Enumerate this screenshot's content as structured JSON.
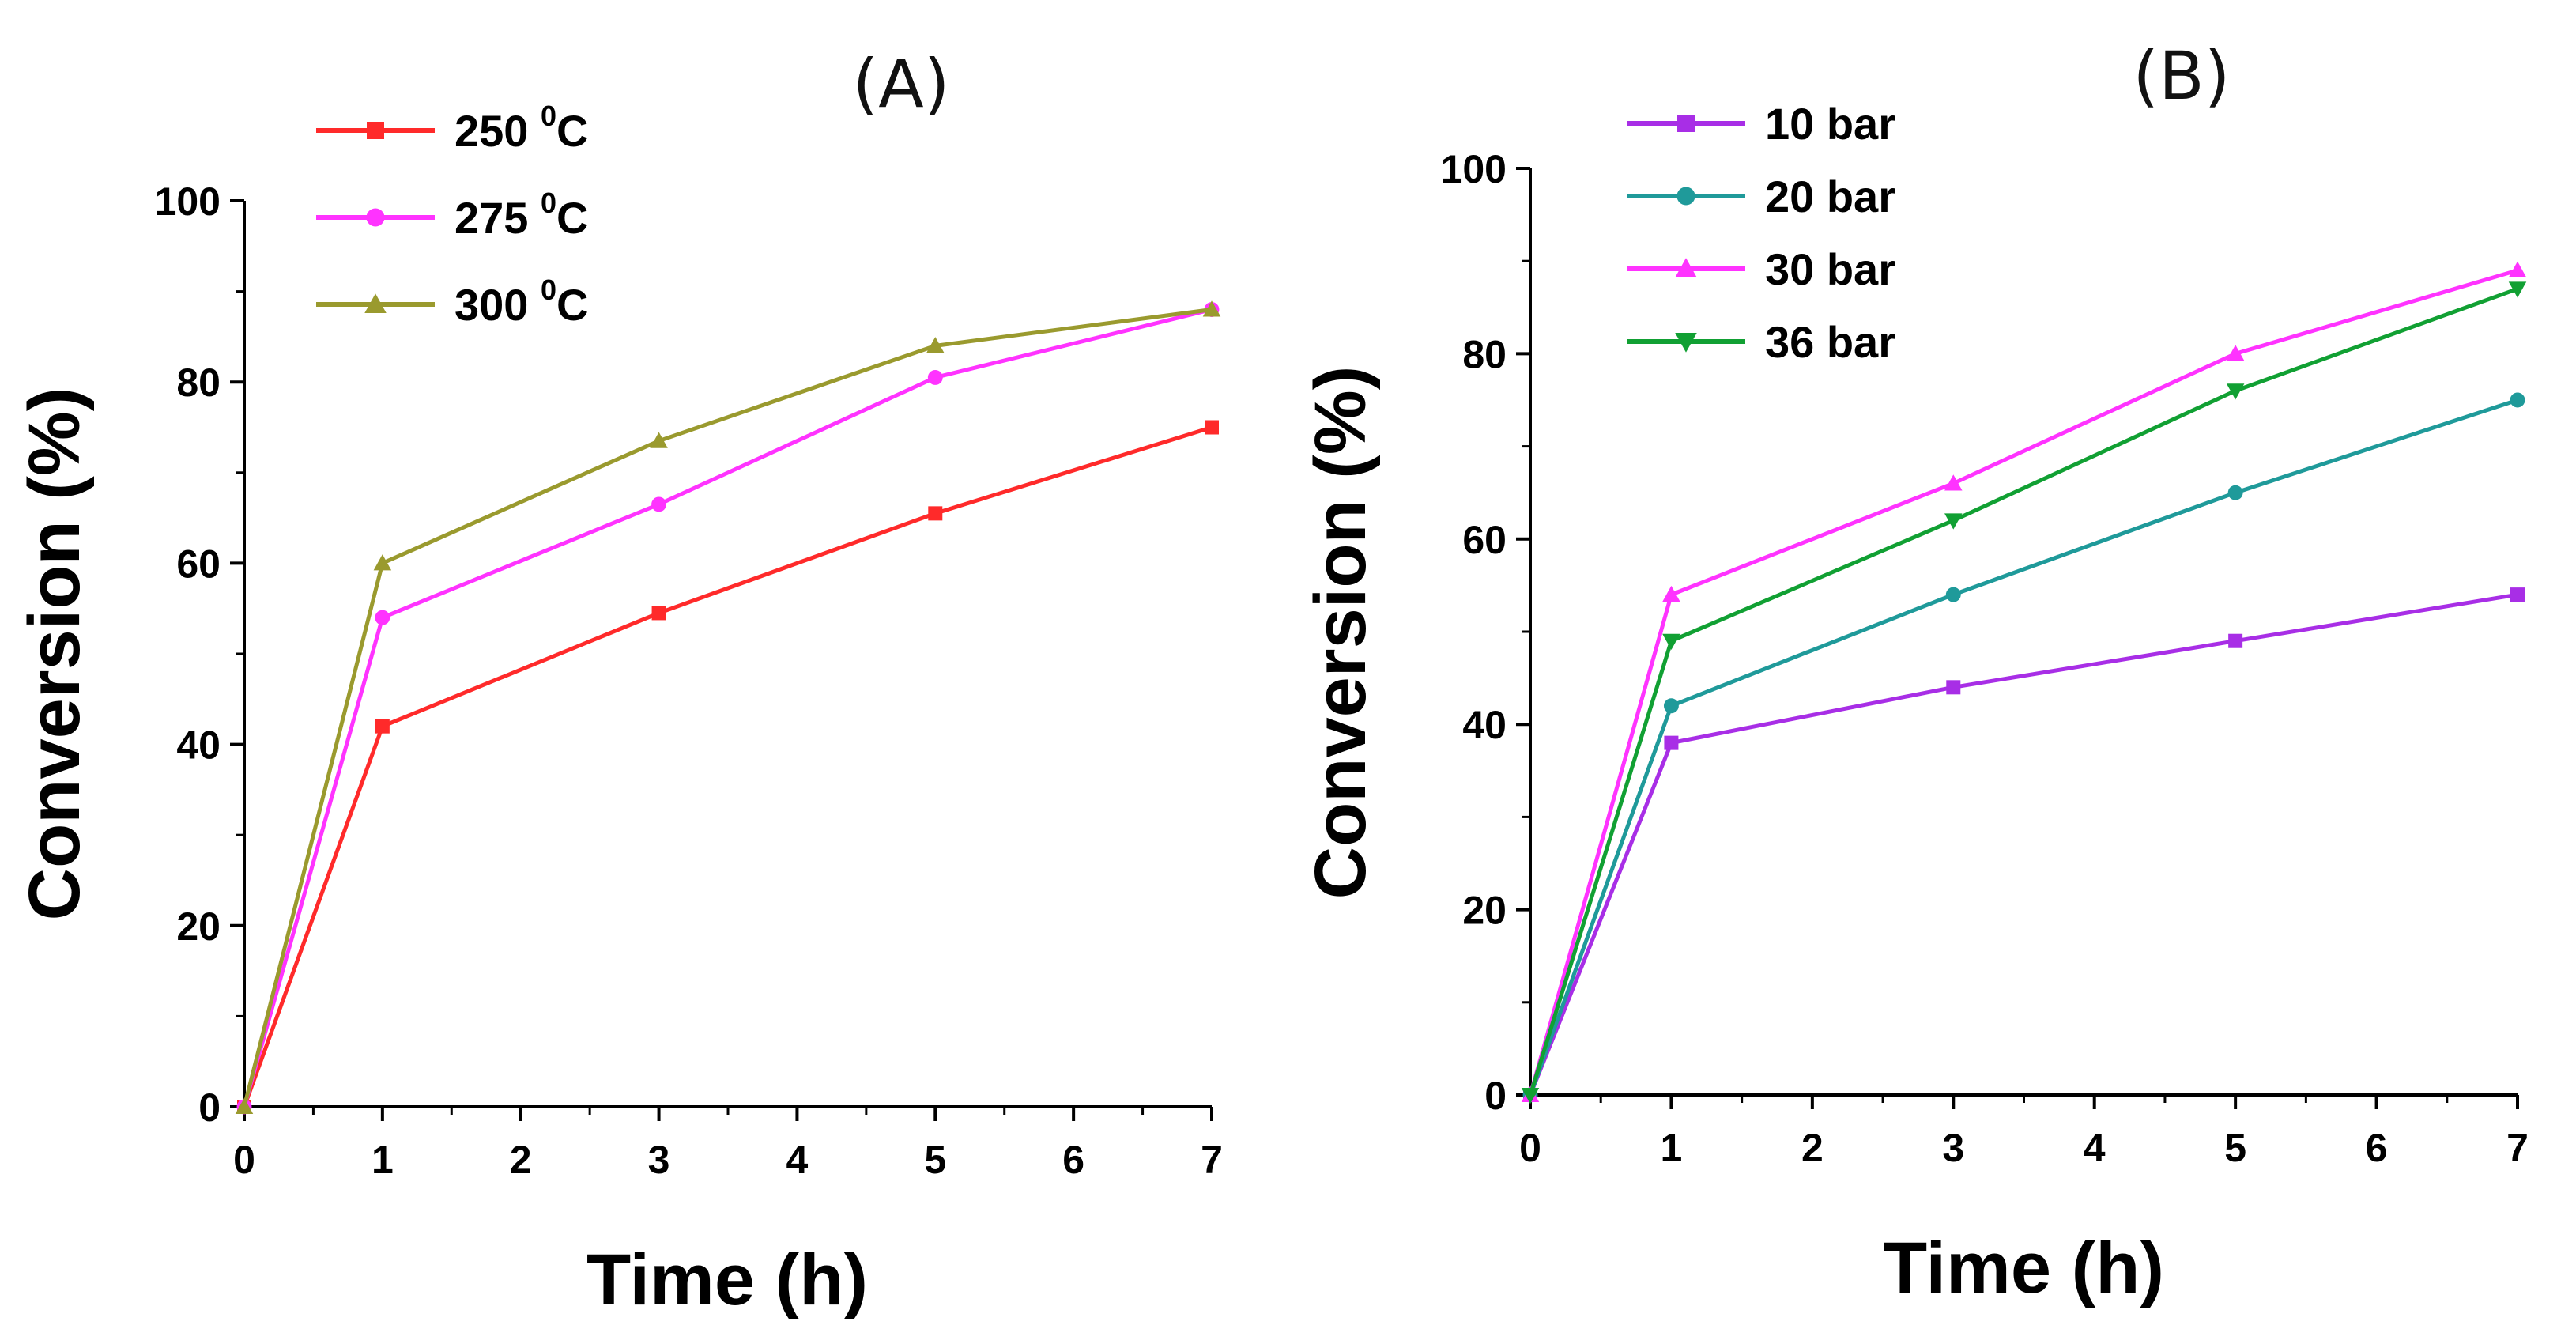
{
  "chart_data": [
    {
      "panel": "A",
      "type": "line",
      "title": "(A)",
      "xlabel": "Time (h)",
      "ylabel": "Conversion (%)",
      "xlim": [
        0,
        7
      ],
      "ylim": [
        0,
        100
      ],
      "xticks": [
        0,
        1,
        2,
        3,
        4,
        5,
        6,
        7
      ],
      "yticks": [
        0,
        20,
        40,
        60,
        80,
        100
      ],
      "legend_position": "top-left",
      "series": [
        {
          "name": "250",
          "unit": "C",
          "sup": "0",
          "color": "#ff2a2a",
          "marker": "square",
          "x": [
            0,
            1,
            3,
            5,
            7
          ],
          "values": [
            0,
            42,
            54.5,
            65.5,
            75
          ]
        },
        {
          "name": "275",
          "unit": "C",
          "sup": "0",
          "color": "#ff33ff",
          "marker": "circle",
          "x": [
            0,
            1,
            3,
            5,
            7
          ],
          "values": [
            0,
            54,
            66.5,
            80.5,
            88
          ]
        },
        {
          "name": "300",
          "unit": "C",
          "sup": "0",
          "color": "#9a9a2e",
          "marker": "triangle-up",
          "x": [
            0,
            1,
            3,
            5,
            7
          ],
          "values": [
            0,
            60,
            73.5,
            84,
            88
          ]
        }
      ]
    },
    {
      "panel": "B",
      "type": "line",
      "title": "(B)",
      "xlabel": "Time (h)",
      "ylabel": "Conversion (%)",
      "xlim": [
        0,
        7
      ],
      "ylim": [
        0,
        100
      ],
      "xticks": [
        0,
        1,
        2,
        3,
        4,
        5,
        6,
        7
      ],
      "yticks": [
        0,
        20,
        40,
        60,
        80,
        100
      ],
      "legend_position": "top-left",
      "series": [
        {
          "name": "10 bar",
          "color": "#a82ee6",
          "marker": "square",
          "x": [
            0,
            1,
            3,
            5,
            7
          ],
          "values": [
            0,
            38,
            44,
            49,
            54
          ]
        },
        {
          "name": "20 bar",
          "color": "#1f9a9a",
          "marker": "circle",
          "x": [
            0,
            1,
            3,
            5,
            7
          ],
          "values": [
            0,
            42,
            54,
            65,
            75
          ]
        },
        {
          "name": "30 bar",
          "color": "#ff33ff",
          "marker": "triangle-up",
          "x": [
            0,
            1,
            3,
            5,
            7
          ],
          "values": [
            0,
            54,
            66,
            80,
            89
          ]
        },
        {
          "name": "36 bar",
          "color": "#11a033",
          "marker": "triangle-down",
          "x": [
            0,
            1,
            3,
            5,
            7
          ],
          "values": [
            0,
            49,
            62,
            76,
            87
          ]
        }
      ]
    }
  ]
}
